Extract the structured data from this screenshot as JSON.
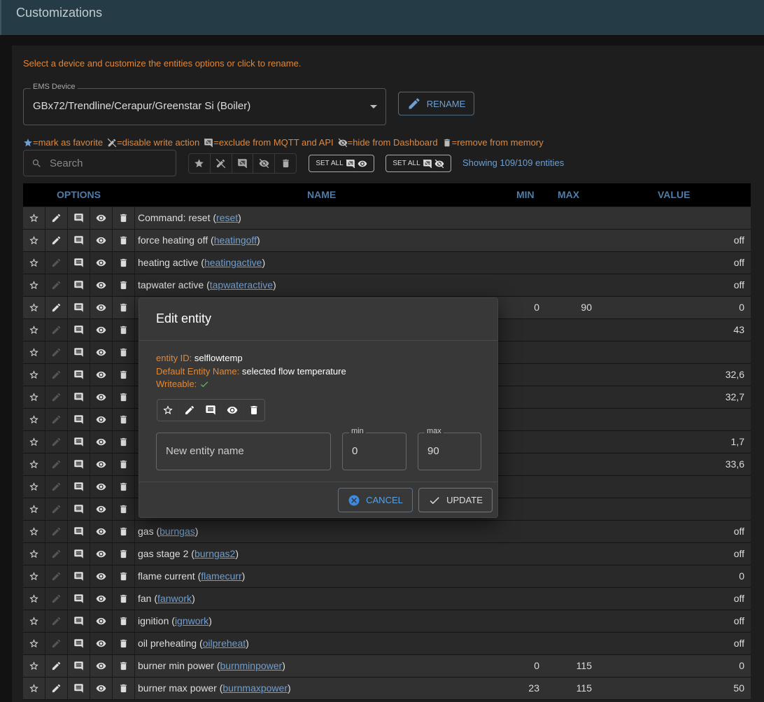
{
  "header": {
    "title": "Customizations"
  },
  "intro": "Select a device and customize the entities options or click to rename.",
  "device_select": {
    "label": "EMS Device",
    "value": "GBx72/Trendline/Cerapur/Greenstar Si (Boiler)"
  },
  "rename_button": "RENAME",
  "legend": [
    "=mark as favorite",
    "=disable write action",
    "=exclude from MQTT and API",
    "=hide from Dashboard",
    "=remove from memory"
  ],
  "search_placeholder": "Search",
  "set_all_buttons": [
    "SET ALL",
    "SET ALL"
  ],
  "entity_count": "Showing 109/109 entities",
  "table": {
    "columns": [
      "OPTIONS",
      "NAME",
      "MIN",
      "MAX",
      "VALUE"
    ],
    "rows": [
      {
        "name": "Command: reset",
        "id": "reset",
        "writable": true
      },
      {
        "name": "force heating off",
        "id": "heatingoff",
        "value": "off",
        "writable": true
      },
      {
        "name": "heating active",
        "id": "heatingactive",
        "value": "off",
        "writable": false
      },
      {
        "name": "tapwater active",
        "id": "tapwateractive",
        "value": "off",
        "writable": false
      },
      {
        "min": 0,
        "max": 90,
        "value": 0,
        "writable": true
      },
      {
        "value": 43,
        "writable": false
      },
      {
        "writable": false
      },
      {
        "value": "32,6",
        "writable": false
      },
      {
        "value": "32,7",
        "writable": false
      },
      {
        "writable": false
      },
      {
        "value": "1,7",
        "writable": false
      },
      {
        "value": "33,6",
        "writable": false
      },
      {
        "writable": false
      },
      {
        "writable": false
      },
      {
        "name": "gas",
        "id": "burngas",
        "value": "off",
        "writable": false
      },
      {
        "name": "gas stage 2",
        "id": "burngas2",
        "value": "off",
        "writable": false
      },
      {
        "name": "flame current",
        "id": "flamecurr",
        "value": 0,
        "writable": false
      },
      {
        "name": "fan",
        "id": "fanwork",
        "value": "off",
        "writable": false
      },
      {
        "name": "ignition",
        "id": "ignwork",
        "value": "off",
        "writable": false
      },
      {
        "name": "oil preheating",
        "id": "oilpreheat",
        "value": "off",
        "writable": false
      },
      {
        "name": "burner min power",
        "id": "burnminpower",
        "min": 0,
        "max": 115,
        "value": 0,
        "writable": true
      },
      {
        "name": "burner max power",
        "id": "burnmaxpower",
        "min": 23,
        "max": 115,
        "value": 50,
        "writable": true
      }
    ]
  },
  "dialog": {
    "title": "Edit entity",
    "entity_id_label": "entity ID:",
    "entity_id": "selflowtemp",
    "default_name_label": "Default Entity Name:",
    "default_name": "selected flow temperature",
    "writeable_label": "Writeable:",
    "name_placeholder": "New entity name",
    "min_label": "min",
    "min": 0,
    "max_label": "max",
    "max": 90,
    "cancel": "CANCEL",
    "update": "UPDATE"
  }
}
